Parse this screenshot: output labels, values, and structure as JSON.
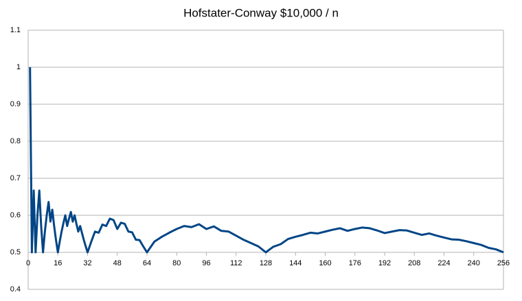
{
  "chart_data": {
    "type": "line",
    "title": "Hofstater-Conway $10,000 / n",
    "x": [
      1,
      2,
      3,
      4,
      5,
      6,
      7,
      8,
      9,
      10,
      11,
      12,
      13,
      14,
      15,
      16,
      17,
      18,
      19,
      20,
      21,
      22,
      23,
      24,
      25,
      26,
      27,
      28,
      29,
      30,
      31,
      32,
      34,
      36,
      38,
      40,
      42,
      44,
      46,
      48,
      50,
      52,
      54,
      56,
      58,
      60,
      62,
      64,
      68,
      72,
      76,
      80,
      84,
      88,
      92,
      96,
      100,
      104,
      108,
      112,
      116,
      120,
      124,
      128,
      132,
      136,
      140,
      144,
      148,
      152,
      156,
      160,
      164,
      168,
      172,
      176,
      180,
      184,
      188,
      192,
      196,
      200,
      204,
      208,
      212,
      216,
      220,
      224,
      228,
      232,
      236,
      240,
      244,
      248,
      252,
      256
    ],
    "series": [
      {
        "color": "#004586",
        "values": [
          1,
          0.5,
          0.667,
          0.5,
          0.6,
          0.667,
          0.571,
          0.5,
          0.556,
          0.6,
          0.636,
          0.583,
          0.615,
          0.571,
          0.533,
          0.5,
          0.529,
          0.556,
          0.579,
          0.6,
          0.571,
          0.591,
          0.609,
          0.583,
          0.6,
          0.577,
          0.556,
          0.571,
          0.552,
          0.533,
          0.516,
          0.5,
          0.529,
          0.556,
          0.553,
          0.575,
          0.571,
          0.591,
          0.587,
          0.563,
          0.58,
          0.577,
          0.556,
          0.554,
          0.534,
          0.533,
          0.516,
          0.5,
          0.529,
          0.542,
          0.553,
          0.563,
          0.571,
          0.568,
          0.576,
          0.563,
          0.57,
          0.558,
          0.556,
          0.545,
          0.534,
          0.525,
          0.516,
          0.5,
          0.515,
          0.522,
          0.536,
          0.542,
          0.547,
          0.553,
          0.551,
          0.556,
          0.561,
          0.565,
          0.558,
          0.563,
          0.567,
          0.565,
          0.559,
          0.552,
          0.556,
          0.56,
          0.559,
          0.553,
          0.547,
          0.551,
          0.545,
          0.54,
          0.535,
          0.534,
          0.53,
          0.525,
          0.52,
          0.512,
          0.508,
          0.5
        ]
      }
    ],
    "xlim": [
      0,
      256
    ],
    "xticks": [
      0,
      16,
      32,
      48,
      64,
      80,
      96,
      112,
      128,
      144,
      160,
      176,
      192,
      208,
      224,
      240,
      256
    ],
    "ylim": [
      0.4,
      1.1
    ],
    "yticks": [
      0.4,
      0.5,
      0.6,
      0.7,
      0.8,
      0.9,
      1,
      1.1
    ],
    "x_axis_at": 0.5,
    "grid": true
  }
}
